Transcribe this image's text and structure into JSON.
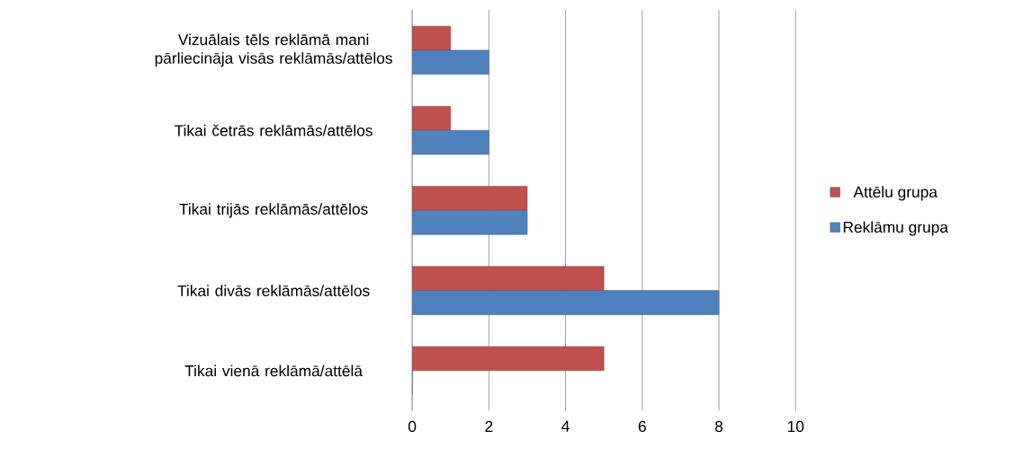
{
  "chart_data": {
    "type": "bar",
    "orientation": "horizontal",
    "categories": [
      "Vizuālais tēls reklāmā mani pārliecināja visās reklāmās/attēlos",
      "Tikai četrās reklāmās/attēlos",
      "Tikai trijās reklāmās/attēlos",
      "Tikai divās reklāmās/attēlos",
      "Tikai vienā reklāmā/attēlā"
    ],
    "series": [
      {
        "name": "Attēlu grupa",
        "color": "#c0504d",
        "values": [
          1,
          1,
          3,
          5,
          5
        ]
      },
      {
        "name": "Reklāmu grupa",
        "color": "#4f81bd",
        "values": [
          2,
          2,
          3,
          8,
          0
        ]
      }
    ],
    "xlim": [
      0,
      10
    ],
    "xticks": [
      0,
      2,
      4,
      6,
      8,
      10
    ],
    "grid": "x",
    "legend": "right"
  }
}
